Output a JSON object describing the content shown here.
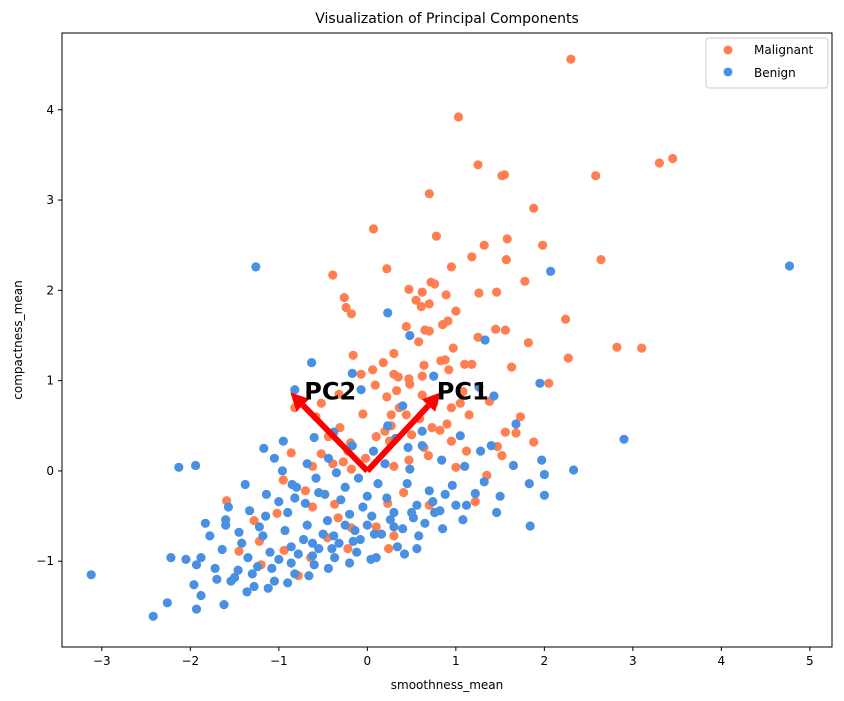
{
  "chart_data": {
    "type": "scatter",
    "title": "Visualization of Principal Components",
    "xlabel": "smoothness_mean",
    "ylabel": "compactness_mean",
    "xlim": [
      -3.45,
      5.25
    ],
    "ylim": [
      -1.95,
      4.85
    ],
    "xticks": [
      -3,
      -2,
      -1,
      0,
      1,
      2,
      3,
      4,
      5
    ],
    "yticks": [
      -1,
      0,
      1,
      2,
      3,
      4
    ],
    "xtick_labels": [
      "−3",
      "−2",
      "−1",
      "0",
      "1",
      "2",
      "3",
      "4",
      "5"
    ],
    "ytick_labels": [
      "−1",
      "0",
      "1",
      "2",
      "3",
      "4"
    ],
    "grid": false,
    "legend": "top-right",
    "series": [
      {
        "name": "Malignant",
        "color": "#ff7f50",
        "points": [
          [
            2.3,
            4.56
          ],
          [
            1.03,
            3.92
          ],
          [
            3.45,
            3.46
          ],
          [
            3.3,
            3.41
          ],
          [
            1.25,
            3.39
          ],
          [
            1.55,
            3.28
          ],
          [
            1.52,
            3.27
          ],
          [
            2.58,
            3.27
          ],
          [
            0.7,
            3.07
          ],
          [
            1.88,
            2.91
          ],
          [
            0.07,
            2.68
          ],
          [
            0.78,
            2.6
          ],
          [
            1.32,
            2.5
          ],
          [
            1.58,
            2.57
          ],
          [
            1.98,
            2.5
          ],
          [
            2.64,
            2.34
          ],
          [
            0.22,
            2.24
          ],
          [
            0.95,
            2.26
          ],
          [
            1.18,
            2.37
          ],
          [
            1.57,
            2.34
          ],
          [
            -0.39,
            2.17
          ],
          [
            0.72,
            2.09
          ],
          [
            0.76,
            2.07
          ],
          [
            0.47,
            2.01
          ],
          [
            1.78,
            2.1
          ],
          [
            1.26,
            1.97
          ],
          [
            1.46,
            1.98
          ],
          [
            0.62,
            1.98
          ],
          [
            0.89,
            1.95
          ],
          [
            -0.26,
            1.92
          ],
          [
            0.55,
            1.89
          ],
          [
            0.7,
            1.85
          ],
          [
            1.0,
            1.77
          ],
          [
            -0.24,
            1.81
          ],
          [
            -0.18,
            1.74
          ],
          [
            0.61,
            1.82
          ],
          [
            2.24,
            1.68
          ],
          [
            0.91,
            1.66
          ],
          [
            0.44,
            1.6
          ],
          [
            0.65,
            1.56
          ],
          [
            1.45,
            1.57
          ],
          [
            1.56,
            1.56
          ],
          [
            1.25,
            1.48
          ],
          [
            0.7,
            1.55
          ],
          [
            0.85,
            1.62
          ],
          [
            2.82,
            1.37
          ],
          [
            3.1,
            1.36
          ],
          [
            2.27,
            1.25
          ],
          [
            2.05,
            0.97
          ],
          [
            1.63,
            1.15
          ],
          [
            1.1,
            1.18
          ],
          [
            1.18,
            1.18
          ],
          [
            0.83,
            1.22
          ],
          [
            0.88,
            1.23
          ],
          [
            0.64,
            1.17
          ],
          [
            0.58,
            1.43
          ],
          [
            0.97,
            1.36
          ],
          [
            1.82,
            1.42
          ],
          [
            0.3,
            1.3
          ],
          [
            0.92,
            1.12
          ],
          [
            0.47,
            1.02
          ],
          [
            0.3,
            1.07
          ],
          [
            0.35,
            1.04
          ],
          [
            0.62,
            1.05
          ],
          [
            0.48,
            0.96
          ],
          [
            -0.16,
            1.28
          ],
          [
            0.18,
            1.2
          ],
          [
            0.06,
            1.12
          ],
          [
            -0.07,
            1.07
          ],
          [
            0.09,
            0.95
          ],
          [
            0.33,
            0.89
          ],
          [
            0.22,
            0.82
          ],
          [
            0.75,
            0.75
          ],
          [
            0.95,
            0.7
          ],
          [
            1.05,
            0.75
          ],
          [
            0.62,
            0.84
          ],
          [
            -0.32,
            0.85
          ],
          [
            -0.52,
            0.75
          ],
          [
            -0.82,
            0.7
          ],
          [
            -0.58,
            0.6
          ],
          [
            0.36,
            0.7
          ],
          [
            0.44,
            0.62
          ],
          [
            0.59,
            0.58
          ],
          [
            0.73,
            0.48
          ],
          [
            0.9,
            0.52
          ],
          [
            1.15,
            0.62
          ],
          [
            0.27,
            0.5
          ],
          [
            0.2,
            0.44
          ],
          [
            0.1,
            0.38
          ],
          [
            -0.31,
            0.48
          ],
          [
            -0.44,
            0.38
          ],
          [
            -0.19,
            0.31
          ],
          [
            -0.22,
            0.22
          ],
          [
            0.25,
            0.33
          ],
          [
            0.5,
            0.4
          ],
          [
            0.64,
            0.26
          ],
          [
            0.82,
            0.45
          ],
          [
            1.56,
            0.43
          ],
          [
            1.68,
            0.42
          ],
          [
            1.88,
            0.32
          ],
          [
            1.47,
            0.27
          ],
          [
            0.95,
            0.33
          ],
          [
            0.69,
            0.17
          ],
          [
            0.47,
            0.12
          ],
          [
            0.3,
            0.05
          ],
          [
            -0.02,
            0.14
          ],
          [
            -0.39,
            0.08
          ],
          [
            -0.52,
            0.19
          ],
          [
            -0.18,
            0.02
          ],
          [
            1.12,
            0.22
          ],
          [
            1.0,
            0.04
          ],
          [
            -0.62,
            0.05
          ],
          [
            -0.86,
            0.2
          ],
          [
            -0.95,
            -0.1
          ],
          [
            -0.7,
            -0.22
          ],
          [
            -0.37,
            -0.37
          ],
          [
            -0.62,
            -0.4
          ],
          [
            -1.02,
            -0.47
          ],
          [
            -1.59,
            -0.33
          ],
          [
            -1.28,
            -0.55
          ],
          [
            -0.33,
            -0.52
          ],
          [
            0.23,
            -0.36
          ],
          [
            0.41,
            -0.24
          ],
          [
            0.3,
            -0.72
          ],
          [
            0.1,
            -0.62
          ],
          [
            0.24,
            -0.86
          ],
          [
            -0.18,
            -0.63
          ],
          [
            -0.45,
            -0.74
          ],
          [
            -0.64,
            -0.96
          ],
          [
            -0.94,
            -0.88
          ],
          [
            -1.22,
            -0.78
          ],
          [
            -1.45,
            -0.89
          ],
          [
            -1.2,
            -1.04
          ],
          [
            -0.78,
            -1.16
          ],
          [
            -0.22,
            -0.86
          ],
          [
            0.7,
            -0.38
          ],
          [
            1.22,
            -0.34
          ],
          [
            1.35,
            -0.05
          ],
          [
            1.52,
            0.17
          ],
          [
            1.73,
            0.6
          ],
          [
            1.38,
            0.77
          ],
          [
            1.08,
            0.88
          ],
          [
            0.27,
            0.62
          ],
          [
            -0.05,
            0.63
          ],
          [
            -0.27,
            0.1
          ]
        ]
      },
      {
        "name": "Benign",
        "color": "#4a90e2",
        "points": [
          [
            4.77,
            2.27
          ],
          [
            -1.26,
            2.26
          ],
          [
            2.07,
            2.21
          ],
          [
            0.23,
            1.75
          ],
          [
            0.48,
            1.5
          ],
          [
            1.33,
            1.45
          ],
          [
            -0.63,
            1.2
          ],
          [
            -0.17,
            1.08
          ],
          [
            1.95,
            0.97
          ],
          [
            0.75,
            1.05
          ],
          [
            1.43,
            0.83
          ],
          [
            1.26,
            0.93
          ],
          [
            -0.07,
            0.9
          ],
          [
            -0.82,
            0.9
          ],
          [
            0.4,
            0.72
          ],
          [
            2.9,
            0.35
          ],
          [
            2.33,
            0.01
          ],
          [
            1.65,
            0.06
          ],
          [
            1.97,
            0.12
          ],
          [
            1.4,
            0.28
          ],
          [
            0.23,
            0.5
          ],
          [
            0.46,
            0.26
          ],
          [
            0.62,
            0.28
          ],
          [
            -0.95,
            0.33
          ],
          [
            -1.17,
            0.25
          ],
          [
            -1.05,
            0.14
          ],
          [
            -2.13,
            0.04
          ],
          [
            -1.94,
            0.06
          ],
          [
            -0.96,
            0.0
          ],
          [
            -0.68,
            0.08
          ],
          [
            -0.44,
            0.14
          ],
          [
            0.07,
            0.22
          ],
          [
            0.32,
            0.36
          ],
          [
            0.62,
            0.44
          ],
          [
            1.05,
            0.39
          ],
          [
            1.28,
            0.22
          ],
          [
            0.84,
            0.12
          ],
          [
            0.48,
            0.02
          ],
          [
            0.2,
            0.08
          ],
          [
            -0.17,
            0.28
          ],
          [
            -0.38,
            0.43
          ],
          [
            -0.6,
            0.37
          ],
          [
            -0.85,
            -0.15
          ],
          [
            -1.14,
            -0.26
          ],
          [
            -1.38,
            -0.15
          ],
          [
            -1.57,
            -0.4
          ],
          [
            -1.83,
            -0.58
          ],
          [
            -1.6,
            -0.6
          ],
          [
            -1.33,
            -0.44
          ],
          [
            -1.15,
            -0.5
          ],
          [
            -0.9,
            -0.46
          ],
          [
            -0.7,
            -0.36
          ],
          [
            -0.48,
            -0.26
          ],
          [
            -0.25,
            -0.18
          ],
          [
            0.0,
            -0.28
          ],
          [
            0.22,
            -0.3
          ],
          [
            0.45,
            -0.14
          ],
          [
            0.7,
            -0.22
          ],
          [
            0.96,
            -0.16
          ],
          [
            1.22,
            -0.25
          ],
          [
            1.5,
            -0.28
          ],
          [
            1.83,
            -0.14
          ],
          [
            2.0,
            -0.27
          ],
          [
            1.84,
            -0.61
          ],
          [
            1.46,
            -0.46
          ],
          [
            1.12,
            -0.38
          ],
          [
            0.82,
            -0.44
          ],
          [
            0.56,
            -0.38
          ],
          [
            0.3,
            -0.46
          ],
          [
            0.05,
            -0.5
          ],
          [
            -0.2,
            -0.48
          ],
          [
            -0.45,
            -0.55
          ],
          [
            -0.68,
            -0.6
          ],
          [
            -0.93,
            -0.66
          ],
          [
            -1.18,
            -0.72
          ],
          [
            -1.42,
            -0.8
          ],
          [
            -1.64,
            -0.87
          ],
          [
            -1.88,
            -0.96
          ],
          [
            -2.05,
            -0.98
          ],
          [
            -2.22,
            -0.96
          ],
          [
            -1.93,
            -1.04
          ],
          [
            -1.72,
            -1.08
          ],
          [
            -1.5,
            -1.18
          ],
          [
            -1.28,
            -1.28
          ],
          [
            -1.05,
            -1.22
          ],
          [
            -0.82,
            -1.14
          ],
          [
            -0.6,
            -1.04
          ],
          [
            -0.37,
            -0.96
          ],
          [
            -0.12,
            -0.9
          ],
          [
            0.1,
            -0.96
          ],
          [
            0.34,
            -0.84
          ],
          [
            0.58,
            -0.72
          ],
          [
            0.85,
            -0.64
          ],
          [
            1.08,
            -0.54
          ],
          [
            0.65,
            -0.58
          ],
          [
            0.4,
            -0.64
          ],
          [
            0.16,
            -0.7
          ],
          [
            -0.08,
            -0.76
          ],
          [
            -0.32,
            -0.8
          ],
          [
            -0.55,
            -0.86
          ],
          [
            -0.78,
            -0.92
          ],
          [
            -1.0,
            -0.98
          ],
          [
            -1.24,
            -1.06
          ],
          [
            -1.46,
            -1.1
          ],
          [
            -1.7,
            -1.2
          ],
          [
            -1.96,
            -1.26
          ],
          [
            -1.88,
            -1.38
          ],
          [
            -1.62,
            -1.48
          ],
          [
            -1.36,
            -1.34
          ],
          [
            -1.12,
            -1.3
          ],
          [
            -0.9,
            -1.24
          ],
          [
            -0.66,
            -1.16
          ],
          [
            -0.44,
            -1.08
          ],
          [
            -0.2,
            -1.02
          ],
          [
            0.04,
            -0.98
          ],
          [
            -2.26,
            -1.46
          ],
          [
            -2.42,
            -1.61
          ],
          [
            -1.93,
            -1.53
          ],
          [
            -3.12,
            -1.15
          ],
          [
            -1.54,
            -1.22
          ],
          [
            -1.3,
            -1.14
          ],
          [
            -1.08,
            -1.08
          ],
          [
            -0.86,
            -1.02
          ],
          [
            -0.62,
            -0.94
          ],
          [
            -0.4,
            -0.86
          ],
          [
            -0.16,
            -0.78
          ],
          [
            0.08,
            -0.7
          ],
          [
            0.3,
            -0.62
          ],
          [
            0.52,
            -0.52
          ],
          [
            0.76,
            -0.46
          ],
          [
            1.0,
            -0.38
          ],
          [
            -0.05,
            -0.4
          ],
          [
            -0.3,
            -0.32
          ],
          [
            -0.55,
            -0.24
          ],
          [
            -0.8,
            -0.18
          ],
          [
            -1.0,
            -0.34
          ],
          [
            -1.22,
            -0.62
          ],
          [
            -1.45,
            -0.68
          ],
          [
            -0.72,
            -0.76
          ],
          [
            -0.5,
            -0.7
          ],
          [
            -0.25,
            -0.6
          ],
          [
            0.0,
            -0.6
          ],
          [
            0.26,
            -0.54
          ],
          [
            0.5,
            -0.46
          ],
          [
            0.74,
            -0.34
          ],
          [
            1.68,
            0.52
          ],
          [
            2.0,
            -0.04
          ],
          [
            1.1,
            0.05
          ],
          [
            0.12,
            -0.14
          ],
          [
            -0.1,
            -0.08
          ],
          [
            -0.35,
            -0.02
          ],
          [
            -0.58,
            -0.08
          ],
          [
            -0.82,
            -0.3
          ],
          [
            -1.6,
            -0.54
          ],
          [
            -1.78,
            -0.72
          ],
          [
            -1.35,
            -0.96
          ],
          [
            -1.1,
            -0.9
          ],
          [
            -0.86,
            -0.84
          ],
          [
            -0.62,
            -0.8
          ],
          [
            -0.38,
            -0.72
          ],
          [
            -0.14,
            -0.66
          ],
          [
            0.42,
            -0.92
          ],
          [
            0.56,
            -0.86
          ],
          [
            0.88,
            -0.26
          ],
          [
            1.32,
            -0.12
          ]
        ]
      }
    ],
    "annotations": [
      {
        "label": "PC1",
        "dx": 0.83,
        "dy": 0.87
      },
      {
        "label": "PC2",
        "dx": -0.87,
        "dy": 0.87
      }
    ],
    "arrow_color": "#ff0000"
  }
}
